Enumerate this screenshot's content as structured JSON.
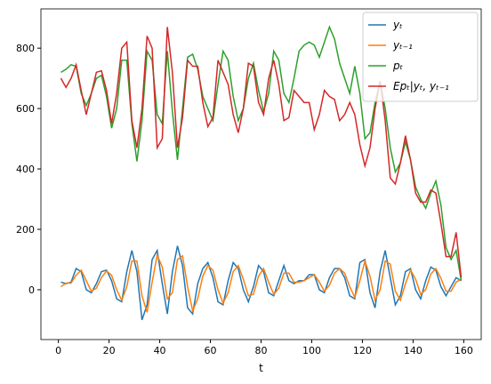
{
  "chart_data": {
    "type": "line",
    "xlabel": "t",
    "xlim": [
      -6.9,
      166.9
    ],
    "ylim": [
      -165,
      930
    ],
    "xticks": [
      0,
      20,
      40,
      60,
      80,
      100,
      120,
      140,
      160
    ],
    "yticks": [
      0,
      200,
      400,
      600,
      800
    ],
    "legend": "upper right",
    "x": [
      1,
      3,
      5,
      7,
      9,
      11,
      13,
      15,
      17,
      19,
      21,
      23,
      25,
      27,
      29,
      31,
      33,
      35,
      37,
      39,
      41,
      43,
      45,
      47,
      49,
      51,
      53,
      55,
      57,
      59,
      61,
      63,
      65,
      67,
      69,
      71,
      73,
      75,
      77,
      79,
      81,
      83,
      85,
      87,
      89,
      91,
      93,
      95,
      97,
      99,
      101,
      103,
      105,
      107,
      109,
      111,
      113,
      115,
      117,
      119,
      121,
      123,
      125,
      127,
      129,
      131,
      133,
      135,
      137,
      139,
      141,
      143,
      145,
      147,
      149,
      151,
      153,
      155,
      157,
      159
    ],
    "series": [
      {
        "name": "yₜ",
        "color": "#1f77b4",
        "values": [
          25,
          20,
          25,
          70,
          60,
          0,
          -10,
          20,
          60,
          65,
          30,
          -30,
          -40,
          60,
          130,
          60,
          -100,
          -50,
          100,
          130,
          20,
          -80,
          60,
          145,
          80,
          -60,
          -80,
          20,
          70,
          90,
          40,
          -40,
          -50,
          30,
          90,
          70,
          0,
          -40,
          10,
          80,
          60,
          -10,
          -20,
          30,
          80,
          30,
          20,
          30,
          30,
          50,
          50,
          0,
          -10,
          40,
          70,
          70,
          40,
          -20,
          -30,
          90,
          100,
          -10,
          -60,
          60,
          130,
          40,
          -50,
          -20,
          60,
          70,
          0,
          -30,
          30,
          75,
          65,
          10,
          -20,
          10,
          40,
          30
        ]
      },
      {
        "name": "yₜ₋₁",
        "color": "#ff7f0e",
        "values": [
          10,
          22,
          22,
          48,
          65,
          30,
          -5,
          5,
          40,
          62,
          48,
          0,
          -35,
          10,
          95,
          95,
          -20,
          -75,
          25,
          115,
          75,
          -30,
          -10,
          100,
          112,
          10,
          -70,
          -30,
          45,
          80,
          65,
          0,
          -45,
          -10,
          60,
          80,
          35,
          -20,
          -15,
          45,
          70,
          25,
          -15,
          5,
          55,
          55,
          25,
          25,
          30,
          40,
          50,
          25,
          -5,
          15,
          55,
          70,
          55,
          10,
          -25,
          30,
          95,
          45,
          -35,
          0,
          95,
          85,
          -5,
          -35,
          20,
          65,
          35,
          -15,
          0,
          52,
          70,
          38,
          -5,
          -5,
          25,
          35
        ]
      },
      {
        "name": "pₜ",
        "color": "#2ca02c",
        "values": [
          720,
          730,
          745,
          740,
          650,
          610,
          650,
          700,
          710,
          640,
          535,
          600,
          760,
          760,
          550,
          425,
          560,
          790,
          760,
          580,
          550,
          790,
          590,
          430,
          600,
          770,
          780,
          730,
          640,
          600,
          560,
          680,
          790,
          760,
          640,
          560,
          600,
          700,
          750,
          660,
          590,
          650,
          790,
          760,
          650,
          620,
          700,
          790,
          810,
          820,
          810,
          770,
          820,
          870,
          830,
          750,
          700,
          650,
          740,
          650,
          500,
          520,
          620,
          690,
          600,
          470,
          390,
          420,
          490,
          430,
          340,
          300,
          270,
          320,
          360,
          280,
          140,
          100,
          130,
          30
        ]
      },
      {
        "name": "Epₜ|yₜ, yₜ₋₁",
        "color": "#d62728",
        "values": [
          700,
          670,
          700,
          745,
          660,
          580,
          650,
          720,
          725,
          660,
          550,
          650,
          800,
          820,
          560,
          470,
          600,
          840,
          800,
          470,
          500,
          870,
          720,
          470,
          570,
          760,
          740,
          740,
          620,
          540,
          570,
          760,
          720,
          680,
          580,
          520,
          600,
          750,
          740,
          620,
          580,
          700,
          760,
          680,
          560,
          570,
          660,
          640,
          620,
          620,
          530,
          580,
          660,
          640,
          630,
          560,
          580,
          620,
          580,
          480,
          410,
          470,
          600,
          690,
          560,
          370,
          350,
          420,
          510,
          430,
          320,
          290,
          290,
          330,
          320,
          220,
          110,
          110,
          190,
          40
        ]
      }
    ]
  }
}
